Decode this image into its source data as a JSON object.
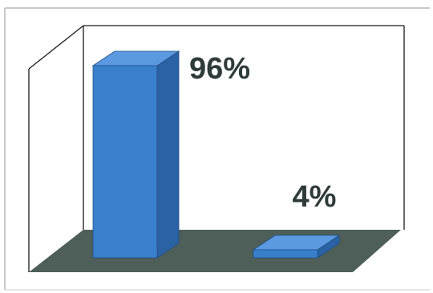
{
  "chart_data": {
    "type": "bar",
    "categories": [
      "",
      ""
    ],
    "values": [
      96,
      4
    ],
    "data_labels": [
      "96%",
      "4%"
    ],
    "ylim": [
      0,
      100
    ],
    "title": "",
    "xlabel": "",
    "ylabel": "",
    "grid": false,
    "legend": "none",
    "three_d": true
  },
  "colors": {
    "bar_front": "#3a7fcb",
    "bar_top": "#5b9ae0",
    "bar_side": "#2a62a3",
    "floor": "#4e5e58",
    "wall_stroke": "#1a1a1a",
    "label": "#2e3b38"
  }
}
